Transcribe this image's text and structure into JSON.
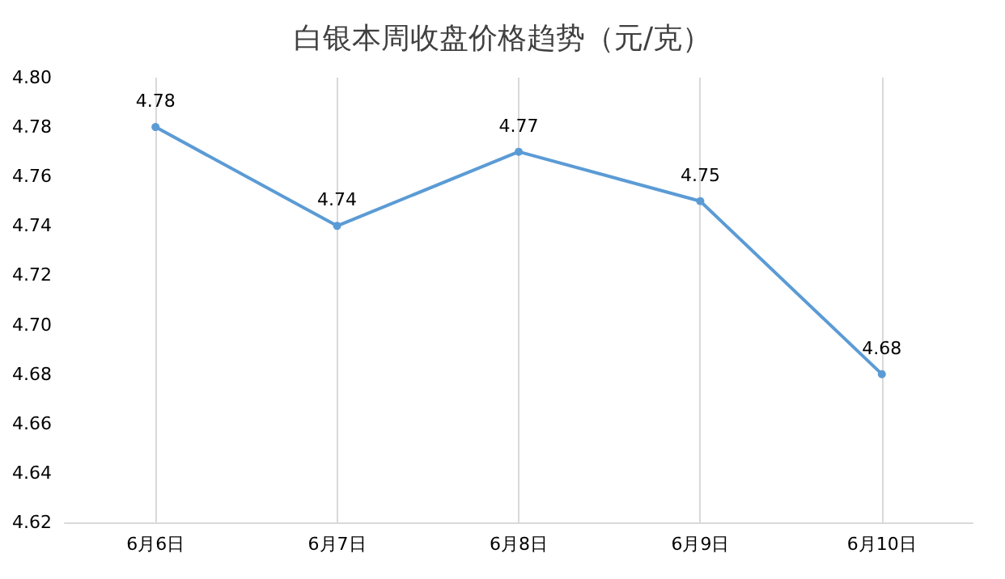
{
  "chart_data": {
    "type": "line",
    "title": "白银本周收盘价格趋势（元/克）",
    "categories": [
      "6月6日",
      "6月7日",
      "6月8日",
      "6月9日",
      "6月10日"
    ],
    "series": [
      {
        "color": "#5b9bd5",
        "values": [
          4.78,
          4.74,
          4.77,
          4.75,
          4.68
        ]
      }
    ],
    "ylim": [
      4.62,
      4.8
    ],
    "yticks": [
      {
        "value": 4.62,
        "label": "4.62"
      },
      {
        "value": 4.64,
        "label": "4.64"
      },
      {
        "value": 4.66,
        "label": "4.66"
      },
      {
        "value": 4.68,
        "label": "4.68"
      },
      {
        "value": 4.7,
        "label": "4.70"
      },
      {
        "value": 4.72,
        "label": "4.72"
      },
      {
        "value": 4.74,
        "label": "4.74"
      },
      {
        "value": 4.76,
        "label": "4.76"
      },
      {
        "value": 4.78,
        "label": "4.78"
      },
      {
        "value": 4.8,
        "label": "4.80"
      }
    ],
    "grid": "x",
    "marker": "circle",
    "line_style": "solid",
    "data_labels": true
  }
}
